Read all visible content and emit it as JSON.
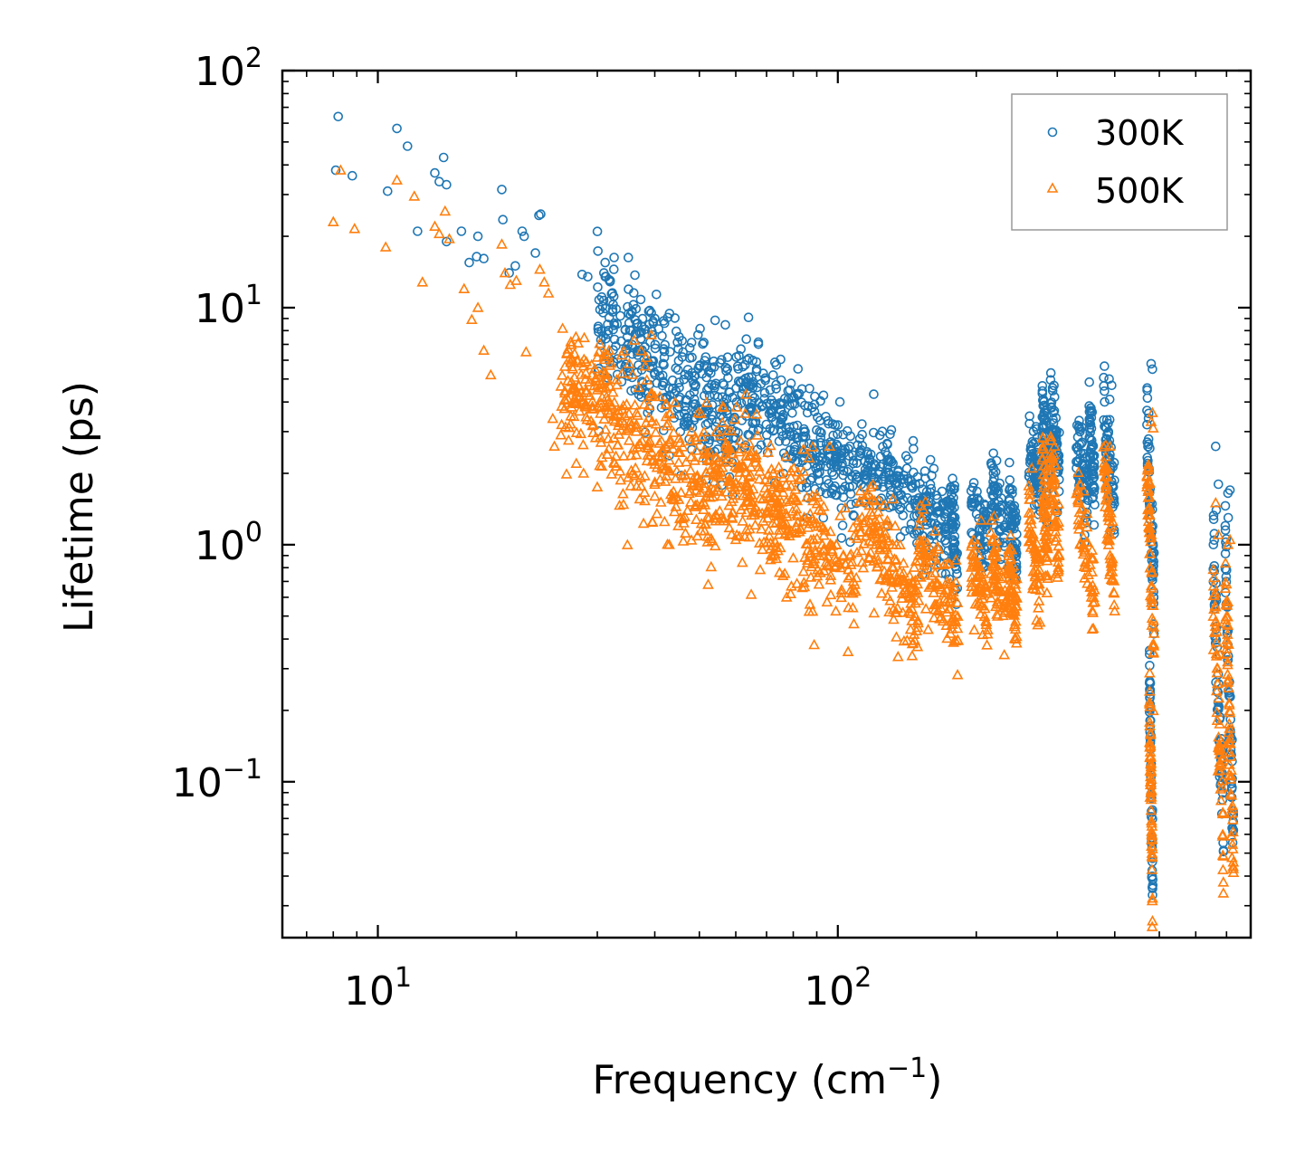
{
  "chart_data": {
    "type": "scatter",
    "title": "",
    "xlabel": "Frequency (cm",
    "xlabel_sup": "−1",
    "xlabel_close": ")",
    "ylabel": "Lifetime (ps)",
    "xscale": "log",
    "yscale": "log",
    "xlim": [
      6.2,
      790
    ],
    "ylim": [
      0.022,
      100
    ],
    "x_ticks": [
      {
        "value": 10,
        "base": "10",
        "exp": "1"
      },
      {
        "value": 100,
        "base": "10",
        "exp": "2"
      }
    ],
    "y_ticks": [
      {
        "value": 0.1,
        "base": "10",
        "exp": "−1"
      },
      {
        "value": 1,
        "base": "10",
        "exp": "0"
      },
      {
        "value": 10,
        "base": "10",
        "exp": "1"
      },
      {
        "value": 100,
        "base": "10",
        "exp": "2"
      }
    ],
    "legend_position": "top-right",
    "series": [
      {
        "name": "300K",
        "color": "#1f77b4",
        "marker": "circle",
        "outliers": [
          [
            8.1,
            38
          ],
          [
            8.2,
            64
          ],
          [
            8.8,
            36
          ],
          [
            10.5,
            31
          ],
          [
            11,
            57
          ],
          [
            11.6,
            48
          ],
          [
            12.2,
            21
          ],
          [
            13.3,
            37
          ],
          [
            13.6,
            34
          ],
          [
            13.9,
            43
          ],
          [
            14.1,
            33
          ],
          [
            14.1,
            19
          ],
          [
            15.2,
            21
          ],
          [
            15.8,
            15.5
          ],
          [
            16.5,
            20
          ],
          [
            16.4,
            16.4
          ],
          [
            17.0,
            16.1
          ],
          [
            18.6,
            31.5
          ],
          [
            18.7,
            23.5
          ],
          [
            19.3,
            14
          ],
          [
            19.9,
            15
          ],
          [
            20.6,
            21
          ],
          [
            20.8,
            20
          ],
          [
            22.0,
            17
          ],
          [
            22.4,
            24.5
          ],
          [
            22.6,
            24.8
          ],
          [
            27.8,
            13.8
          ],
          [
            28.6,
            13.5
          ],
          [
            31.0,
            14
          ],
          [
            31.2,
            15.5
          ],
          [
            32,
            13
          ],
          [
            40,
            9
          ],
          [
            42,
            8.6
          ],
          [
            45,
            6.7
          ],
          [
            57,
            5.6
          ],
          [
            89,
            3.9
          ],
          [
            100,
            3.2
          ],
          [
            108,
            2.2
          ],
          [
            120,
            1.9
          ],
          [
            176,
            1.75
          ],
          [
            218,
            2.1
          ],
          [
            263,
            2.6
          ],
          [
            280,
            3.2
          ],
          [
            296,
            4.2
          ],
          [
            389,
            5.0
          ],
          [
            394,
            4.7
          ],
          [
            390,
            4.1
          ],
          [
            480,
            5.8
          ],
          [
            483,
            5.5
          ],
          [
            663,
            2.6
          ],
          [
            672,
            1.8
          ],
          [
            665,
            1.4
          ],
          [
            705,
            1.65
          ],
          [
            712,
            1.7
          ],
          [
            706,
            1.3
          ]
        ],
        "bands": [
          [
            30,
            60,
            9,
            3.2,
            0.3
          ],
          [
            60,
            110,
            4.5,
            1.9,
            0.25
          ],
          [
            110,
            175,
            2.4,
            1.15,
            0.22
          ],
          [
            175,
            182,
            1.5,
            0.9,
            0.2
          ],
          [
            195,
            212,
            1.4,
            0.95,
            0.2
          ],
          [
            215,
            232,
            1.9,
            0.9,
            0.2
          ],
          [
            235,
            245,
            1.5,
            0.95,
            0.2
          ],
          [
            260,
            276,
            2.5,
            1.7,
            0.2
          ],
          [
            278,
            286,
            3.6,
            1.9,
            0.2
          ],
          [
            290,
            303,
            4.0,
            1.9,
            0.2
          ],
          [
            330,
            350,
            2.5,
            1.5,
            0.2
          ],
          [
            352,
            362,
            3.4,
            1.7,
            0.2
          ],
          [
            378,
            400,
            3.8,
            1.5,
            0.2
          ],
          [
            470,
            487,
            3.5,
            0.55,
            0.25
          ],
          [
            476,
            484,
            0.3,
            0.035,
            0.2
          ],
          [
            655,
            690,
            1.1,
            0.05,
            0.25
          ],
          [
            695,
            725,
            1.0,
            0.05,
            0.25
          ]
        ]
      },
      {
        "name": "500K",
        "color": "#ff7f0e",
        "marker": "triangle",
        "outliers": [
          [
            8.0,
            23
          ],
          [
            8.3,
            38
          ],
          [
            8.9,
            21.5
          ],
          [
            10.4,
            18
          ],
          [
            11.0,
            34.5
          ],
          [
            12.0,
            29.5
          ],
          [
            12.5,
            12.8
          ],
          [
            13.3,
            22
          ],
          [
            13.6,
            20.5
          ],
          [
            14,
            25.5
          ],
          [
            14.3,
            19.5
          ],
          [
            15.4,
            12
          ],
          [
            16,
            8.9
          ],
          [
            16.5,
            10
          ],
          [
            17,
            6.6
          ],
          [
            17.6,
            5.2
          ],
          [
            18.6,
            18.5
          ],
          [
            18.9,
            14
          ],
          [
            19.4,
            12.5
          ],
          [
            20,
            13
          ],
          [
            21,
            6.5
          ],
          [
            22.5,
            14.5
          ],
          [
            23,
            12.8
          ],
          [
            23.5,
            11.5
          ],
          [
            24,
            3.4
          ],
          [
            24.2,
            2.6
          ],
          [
            25,
            2.9
          ],
          [
            27,
            2.2
          ],
          [
            28,
            2.0
          ],
          [
            30,
            1.75
          ],
          [
            40,
            1.6
          ],
          [
            42,
            1.25
          ],
          [
            43,
            1.0
          ],
          [
            45,
            1.2
          ],
          [
            60,
            1.05
          ],
          [
            75,
            0.97
          ],
          [
            79,
            0.62
          ],
          [
            87,
            0.56
          ],
          [
            91,
            0.68
          ],
          [
            96,
            2.6
          ],
          [
            130,
            0.72
          ],
          [
            150,
            0.73
          ],
          [
            176,
            0.62
          ],
          [
            218,
            0.72
          ],
          [
            264,
            2.1
          ],
          [
            279,
            2.6
          ],
          [
            296,
            2.6
          ],
          [
            390,
            2.6
          ],
          [
            480,
            3.3
          ],
          [
            483,
            3.6
          ],
          [
            485,
            3.1
          ],
          [
            663,
            1.5
          ],
          [
            672,
            1.1
          ],
          [
            705,
            1.0
          ],
          [
            712,
            1.05
          ]
        ],
        "bands": [
          [
            25,
            55,
            5.0,
            1.45,
            0.35
          ],
          [
            55,
            110,
            2.3,
            0.75,
            0.3
          ],
          [
            110,
            150,
            1.3,
            0.55,
            0.25
          ],
          [
            150,
            183,
            1.0,
            0.45,
            0.22
          ],
          [
            195,
            212,
            0.8,
            0.5,
            0.2
          ],
          [
            215,
            232,
            0.95,
            0.5,
            0.2
          ],
          [
            235,
            245,
            0.8,
            0.5,
            0.2
          ],
          [
            260,
            276,
            1.3,
            0.6,
            0.2
          ],
          [
            278,
            286,
            2.3,
            0.8,
            0.2
          ],
          [
            290,
            303,
            2.2,
            0.9,
            0.2
          ],
          [
            330,
            362,
            1.6,
            0.55,
            0.2
          ],
          [
            378,
            400,
            2.4,
            0.6,
            0.2
          ],
          [
            470,
            487,
            2.4,
            0.36,
            0.25
          ],
          [
            476,
            484,
            0.2,
            0.033,
            0.2
          ],
          [
            655,
            690,
            0.7,
            0.05,
            0.25
          ],
          [
            695,
            725,
            0.75,
            0.045,
            0.25
          ]
        ]
      }
    ]
  }
}
